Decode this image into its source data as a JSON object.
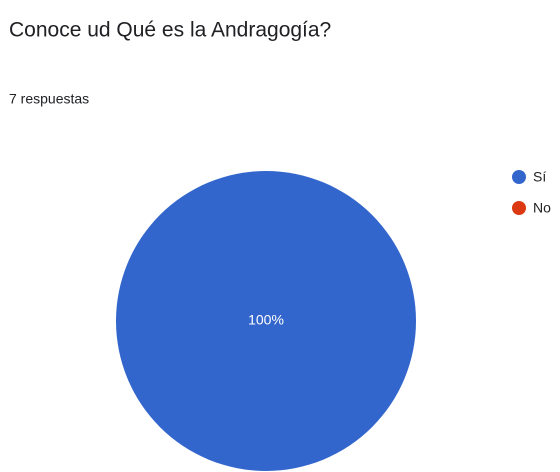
{
  "chart_data": {
    "type": "pie",
    "title": "Conoce ud Qué es la Andragogía?",
    "subtitle": "7 respuestas",
    "categories": [
      "Sí",
      "No"
    ],
    "values": [
      100,
      0
    ],
    "value_labels": [
      "100%",
      null
    ],
    "colors": [
      "#3366cc",
      "#dc3912"
    ],
    "legend": "right"
  }
}
